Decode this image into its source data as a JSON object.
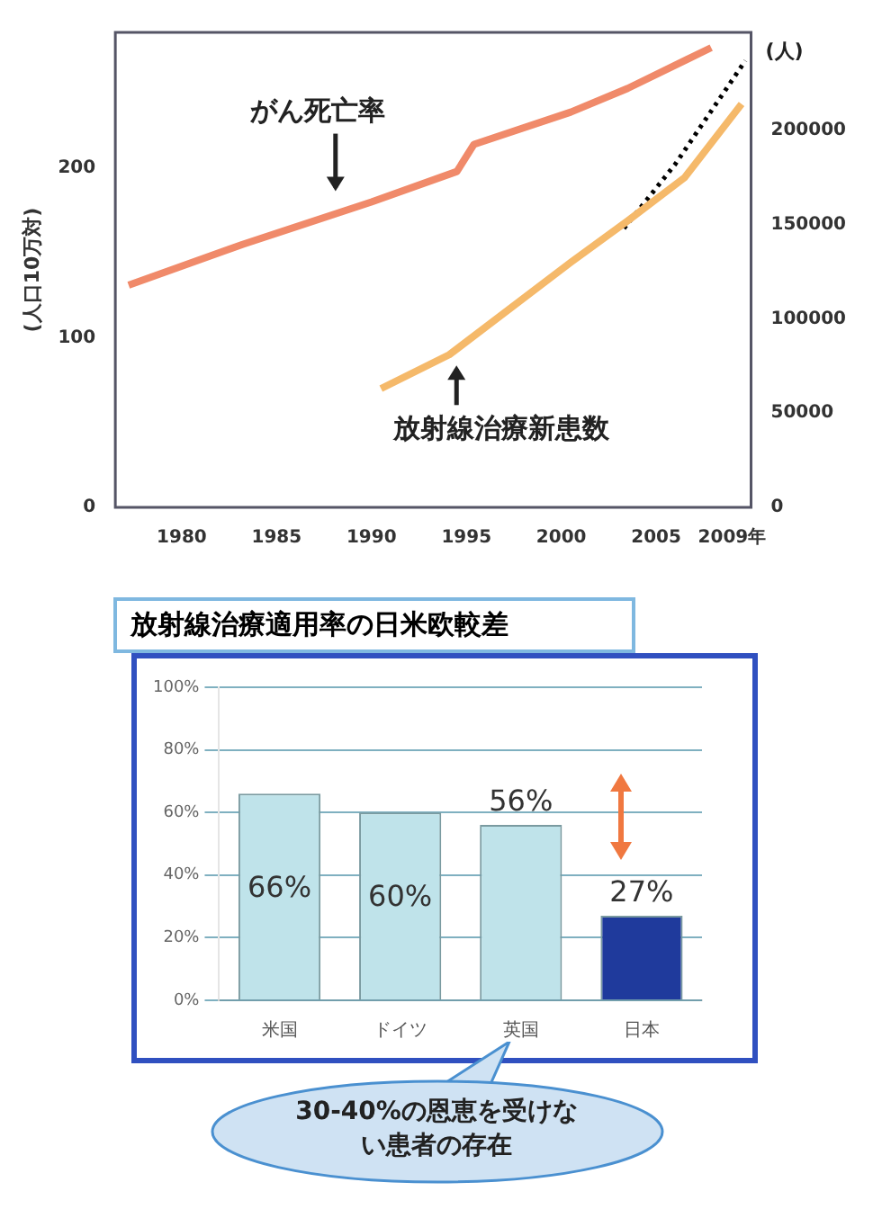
{
  "chart_data": [
    {
      "type": "line",
      "ylabel": "(人口10万対)",
      "y2label": "(人)",
      "xlim": [
        1976.5,
        2010
      ],
      "xticks": [
        1980,
        1985,
        1990,
        1995,
        2000,
        2005,
        {
          "value": 2009,
          "label": "2009年"
        }
      ],
      "ylim": [
        0,
        280
      ],
      "yticks": [
        0,
        100,
        200
      ],
      "y2lim": [
        0,
        252000
      ],
      "y2ticks": [
        0,
        50000,
        100000,
        150000,
        200000
      ],
      "marker": "none",
      "series": [
        {
          "name": "がん死亡率",
          "color": "#f08a6a",
          "x": [
            1977.2,
            1983.2,
            1990,
            1994.5,
            1995.4,
            2000.5,
            2003.5,
            2007.9
          ],
          "values": [
            131,
            155,
            180,
            198,
            214,
            233,
            247,
            271
          ]
        },
        {
          "name": "放射線治療新患数",
          "color": "#f5b96a",
          "axis": "y2",
          "x": [
            1990.5,
            1994.1,
            2000.5,
            2003.5,
            2006.5,
            2009.5
          ],
          "values": [
            63000,
            81000,
            130000,
            152000,
            175000,
            214000
          ]
        },
        {
          "color": "#000000",
          "axis": "y2",
          "line_style": "dotted",
          "x": [
            2003.3,
            2006,
            2009.7
          ],
          "values": [
            148000,
            182000,
            237000
          ]
        }
      ]
    },
    {
      "type": "bar",
      "title": "放射線治療適用率の日米欧較差",
      "categories": [
        "米国",
        "ドイツ",
        "英国",
        "日本"
      ],
      "values": [
        66,
        60,
        56,
        27
      ],
      "colors": [
        "#bfe3ea",
        "#bfe3ea",
        "#bfe3ea",
        "#1f3a9c"
      ],
      "value_labels": [
        "66%",
        "60%",
        "56%",
        "27%"
      ],
      "ylim": [
        0,
        100
      ],
      "yticks": [
        {
          "value": 0,
          "label": "0%"
        },
        {
          "value": 20,
          "label": "20%"
        },
        {
          "value": 40,
          "label": "40%"
        },
        {
          "value": 60,
          "label": "60%"
        },
        {
          "value": 80,
          "label": "80%"
        },
        {
          "value": 100,
          "label": "100%"
        }
      ],
      "grid": "y",
      "annotations": [
        "30-40%の恩恵を受けない患者の存在"
      ]
    }
  ]
}
